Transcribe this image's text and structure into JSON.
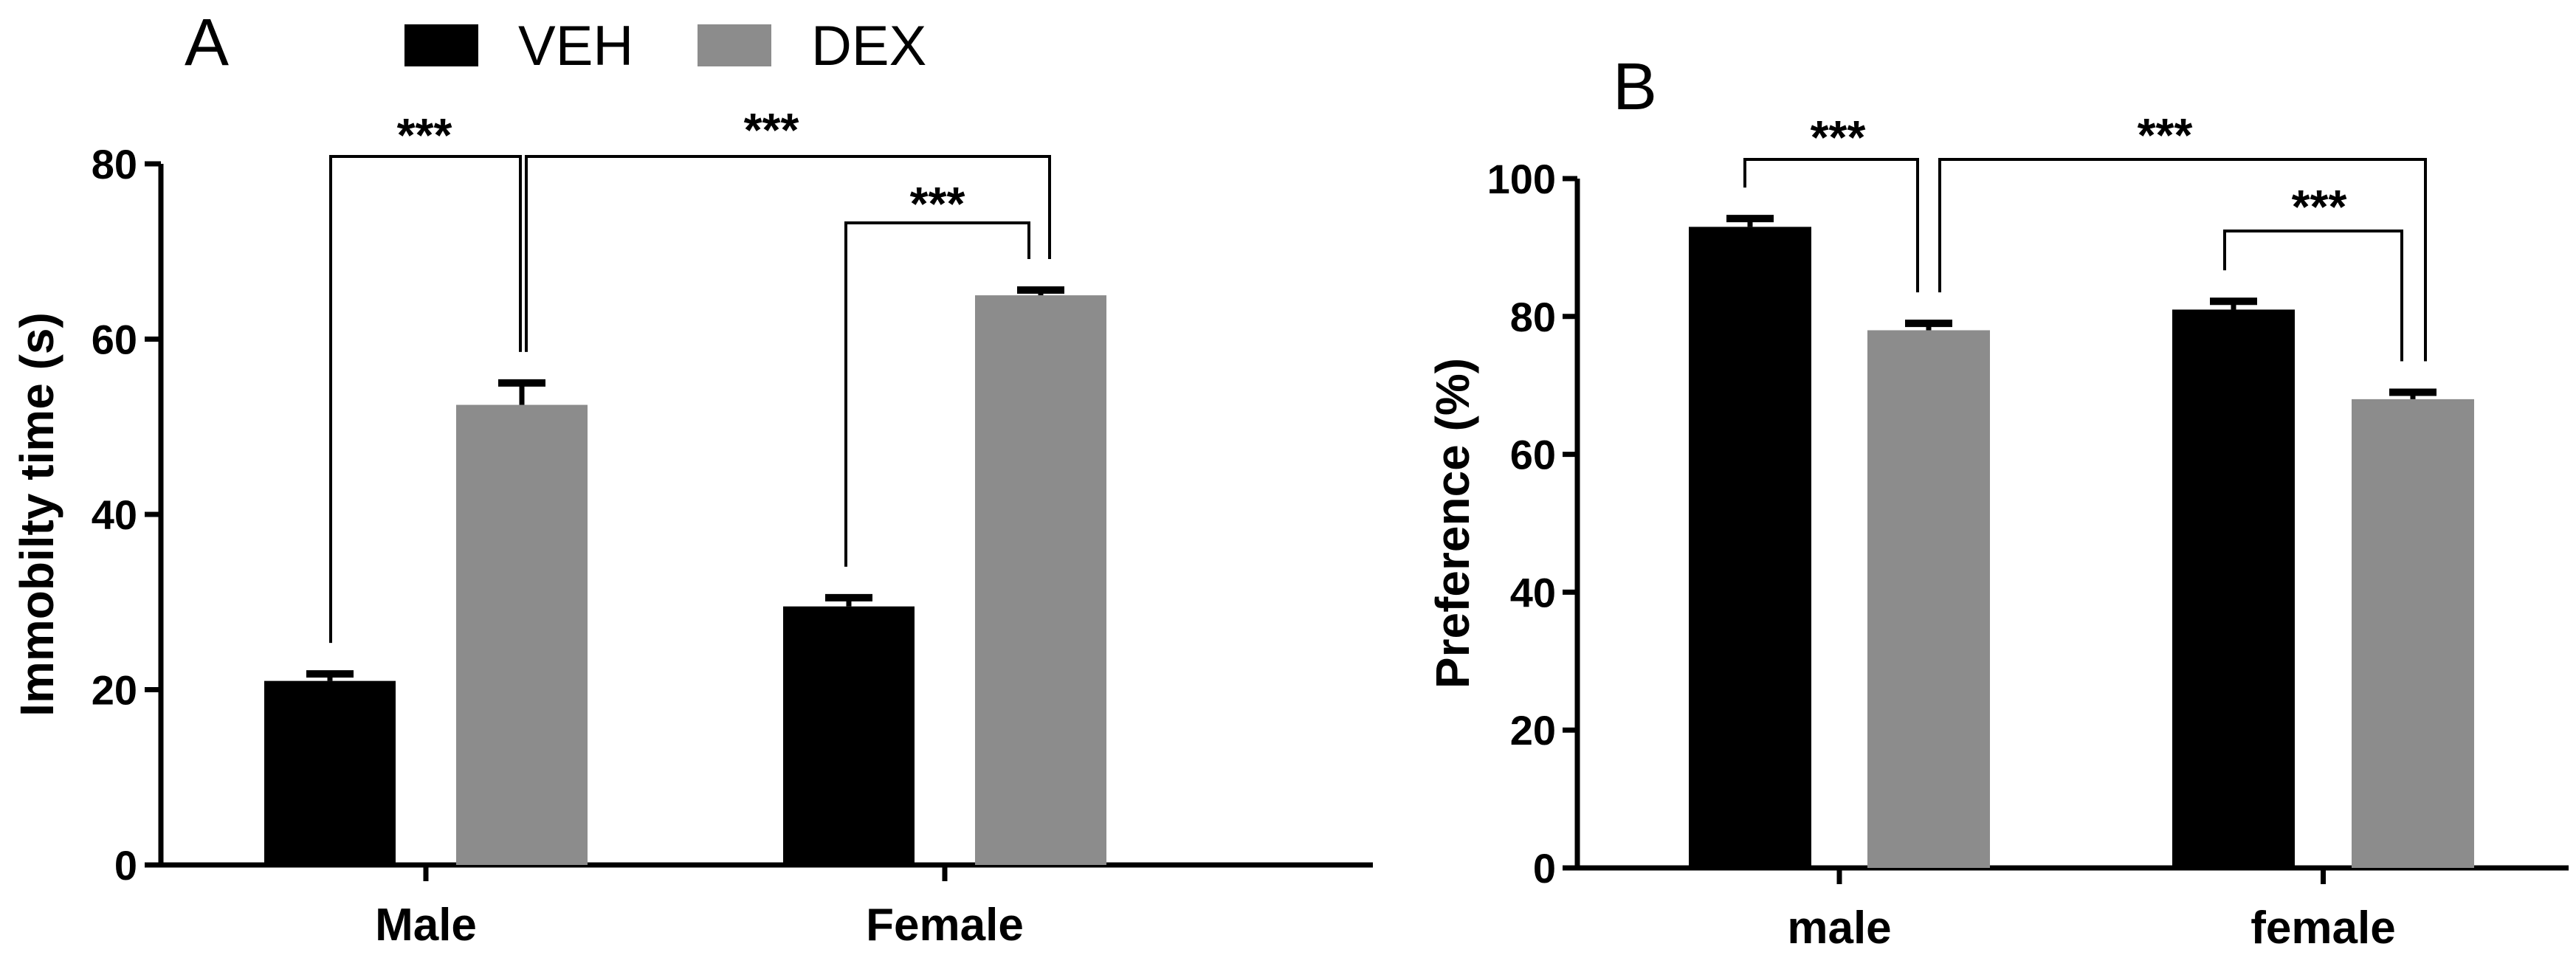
{
  "legend": [
    {
      "label": "VEH",
      "color": "#000000"
    },
    {
      "label": "DEX",
      "color": "#8c8c8c"
    }
  ],
  "chart_data": [
    {
      "panel": "A",
      "type": "bar",
      "categories": [
        "Male",
        "Female"
      ],
      "series": [
        {
          "name": "VEH",
          "values": [
            21,
            29.5
          ],
          "errors": [
            0.8,
            1.0
          ]
        },
        {
          "name": "DEX",
          "values": [
            52.5,
            65
          ],
          "errors": [
            2.5,
            0.6
          ]
        }
      ],
      "ylabel": "Immobilty time (s)",
      "ylim": [
        0,
        80
      ],
      "yticks": [
        0,
        20,
        40,
        60,
        80
      ],
      "significance": [
        {
          "label": "***",
          "from": "Male-VEH",
          "to": "Male-DEX"
        },
        {
          "label": "***",
          "from": "Male-DEX",
          "to": "Female-DEX"
        },
        {
          "label": "***",
          "from": "Female-VEH",
          "to": "Female-DEX"
        }
      ]
    },
    {
      "panel": "B",
      "type": "bar",
      "categories": [
        "male",
        "female"
      ],
      "series": [
        {
          "name": "VEH",
          "values": [
            93,
            81
          ],
          "errors": [
            1.2,
            1.2
          ]
        },
        {
          "name": "DEX",
          "values": [
            78,
            68
          ],
          "errors": [
            1.0,
            1.0
          ]
        }
      ],
      "ylabel": "Preference (%)",
      "ylim": [
        0,
        100
      ],
      "yticks": [
        0,
        20,
        40,
        60,
        80,
        100
      ],
      "significance": [
        {
          "label": "***",
          "from": "male-VEH",
          "to": "male-DEX"
        },
        {
          "label": "***",
          "from": "male-DEX",
          "to": "female-DEX"
        },
        {
          "label": "***",
          "from": "female-VEH",
          "to": "female-DEX"
        }
      ]
    }
  ]
}
